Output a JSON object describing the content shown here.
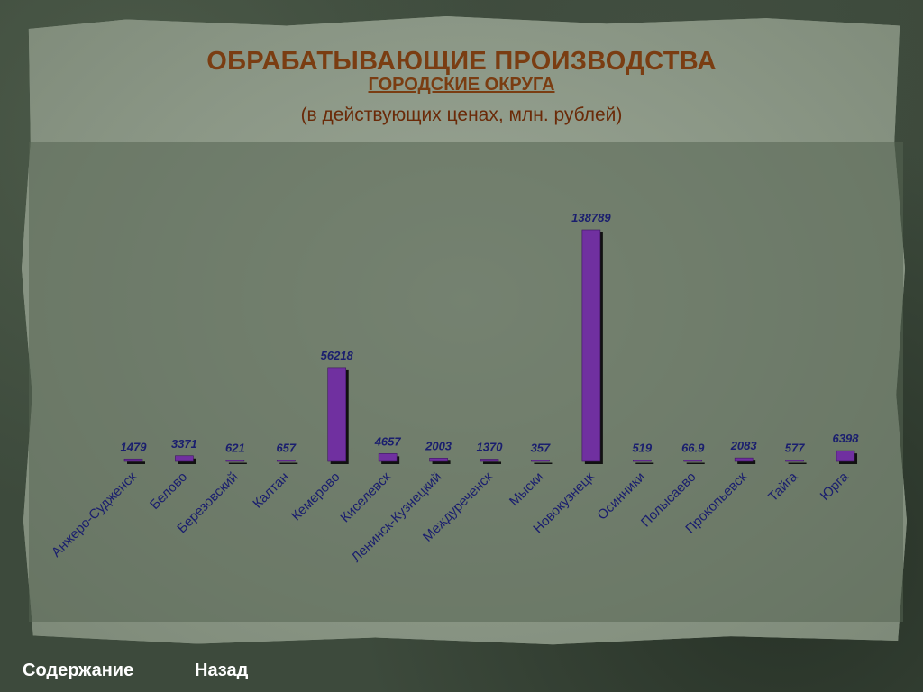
{
  "header": {
    "title": "ОБРАБАТЫВАЮЩИЕ ПРОИЗВОДСТВА",
    "subtitle": "ГОРОДСКИЕ ОКРУГА",
    "units": "(в действующих ценах, млн. рублей)"
  },
  "nav": {
    "contents_label": "Содержание",
    "back_label": "Назад"
  },
  "colors": {
    "bar": "#7030a0",
    "bar_shadow": "#111111",
    "label_text": "#1a1e6e",
    "title": "#7a3d12"
  },
  "chart_data": {
    "type": "bar",
    "categories": [
      "Анжеро-Судженск",
      "Белово",
      "Березовский",
      "Калтан",
      "Кемерово",
      "Киселевск",
      "Ленинск-Кузнецкий",
      "Междуреченск",
      "Мыски",
      "Новокузнецк",
      "Осинники",
      "Полысаево",
      "Прокопьевск",
      "Тайга",
      "Юрга"
    ],
    "values": [
      1479,
      3371,
      621,
      657,
      56218,
      4657,
      2003,
      1370,
      357,
      138789,
      519,
      66.9,
      2083,
      577,
      6398
    ],
    "value_labels": [
      "1479",
      "3371",
      "621",
      "657",
      "56218",
      "4657",
      "2003",
      "1370",
      "357",
      "138789",
      "519",
      "66.9",
      "2083",
      "577",
      "6398"
    ],
    "ylim": [
      0,
      138789
    ],
    "grid": false,
    "legend": "none"
  }
}
